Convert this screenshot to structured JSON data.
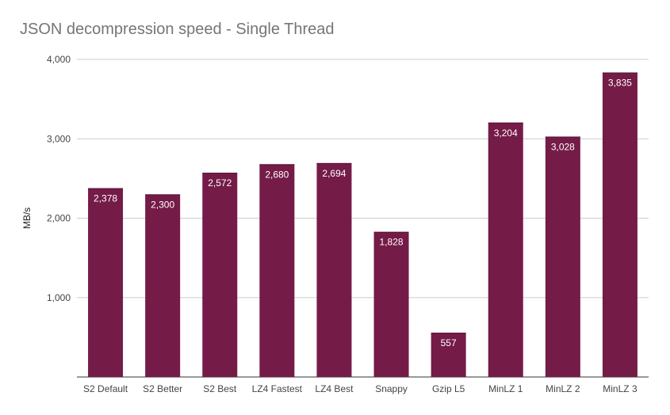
{
  "chart_data": {
    "type": "bar",
    "title": "JSON decompression speed - Single Thread",
    "xlabel": "",
    "ylabel": "MB/s",
    "categories": [
      "S2 Default",
      "S2 Better",
      "S2 Best",
      "LZ4 Fastest",
      "LZ4 Best",
      "Snappy",
      "Gzip L5",
      "MinLZ 1",
      "MinLZ 2",
      "MinLZ 3"
    ],
    "values": [
      2378,
      2300,
      2572,
      2680,
      2694,
      1828,
      557,
      3204,
      3028,
      3835
    ],
    "value_labels": [
      "2,378",
      "2,300",
      "2,572",
      "2,680",
      "2,694",
      "1,828",
      "557",
      "3,204",
      "3,028",
      "3,835"
    ],
    "ylim": [
      0,
      4000
    ],
    "yticks": [
      1000,
      2000,
      3000,
      4000
    ],
    "ytick_labels": [
      "1,000",
      "2,000",
      "3,000",
      "4,000"
    ],
    "grid": true,
    "legend": "none",
    "bar_color": "#741b47"
  }
}
